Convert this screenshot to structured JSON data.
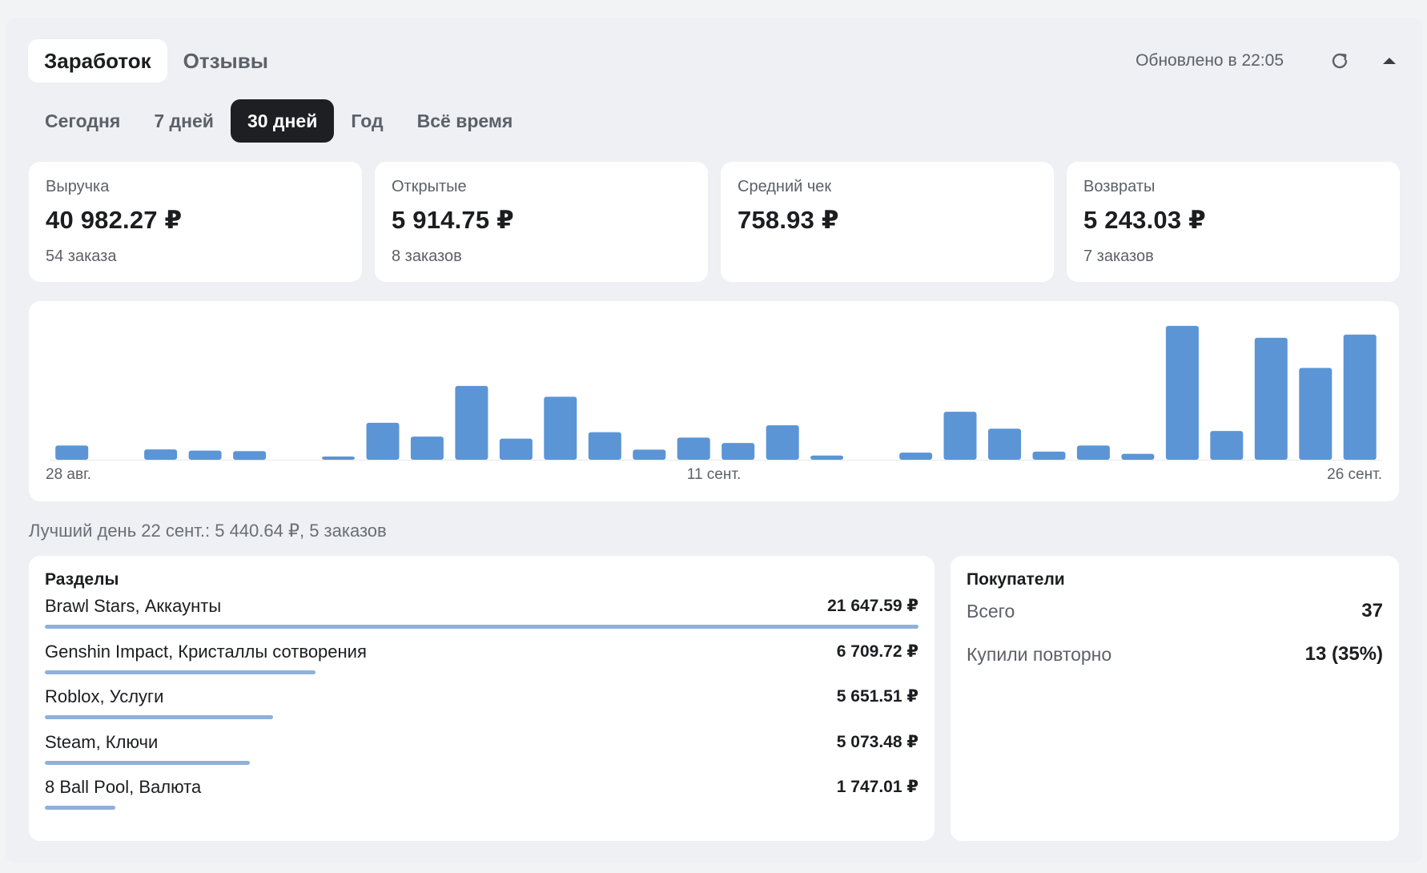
{
  "tabs": [
    {
      "label": "Заработок",
      "active": true
    },
    {
      "label": "Отзывы",
      "active": false
    }
  ],
  "header": {
    "updated": "Обновлено в 22:05",
    "refresh_icon": "refresh-icon",
    "collapse_icon": "triangle-up-icon"
  },
  "periods": [
    {
      "label": "Сегодня",
      "active": false
    },
    {
      "label": "7 дней",
      "active": false
    },
    {
      "label": "30 дней",
      "active": true
    },
    {
      "label": "Год",
      "active": false
    },
    {
      "label": "Всё время",
      "active": false
    }
  ],
  "stats": [
    {
      "label": "Выручка",
      "value": "40 982.27 ₽",
      "sub": "54 заказа"
    },
    {
      "label": "Открытые",
      "value": "5 914.75 ₽",
      "sub": "8 заказов"
    },
    {
      "label": "Средний чек",
      "value": "758.93 ₽",
      "sub": ""
    },
    {
      "label": "Возвраты",
      "value": "5 243.03 ₽",
      "sub": "7 заказов"
    }
  ],
  "chart_data": {
    "type": "bar",
    "x_tick_labels": [
      "28 авг.",
      "11 сент.",
      "26 сент."
    ],
    "values": [
      580,
      0,
      420,
      370,
      350,
      0,
      130,
      1500,
      940,
      3000,
      860,
      2560,
      1120,
      410,
      900,
      680,
      1400,
      170,
      0,
      290,
      1950,
      1260,
      330,
      580,
      240,
      5440.64,
      1170,
      4960,
      3730,
      5090
    ],
    "ylim": [
      0,
      5600
    ],
    "color": "#5b95d5",
    "grid": false
  },
  "best_day": "Лучший день 22 сент.: 5 440.64 ₽, 5 заказов",
  "sections": {
    "title": "Разделы",
    "items": [
      {
        "name": "Brawl Stars, Аккаунты",
        "value": "21 647.59 ₽",
        "amount": 21647.59
      },
      {
        "name": "Genshin Impact, Кристаллы сотворения",
        "value": "6 709.72 ₽",
        "amount": 6709.72
      },
      {
        "name": "Roblox, Услуги",
        "value": "5 651.51 ₽",
        "amount": 5651.51
      },
      {
        "name": "Steam, Ключи",
        "value": "5 073.48 ₽",
        "amount": 5073.48
      },
      {
        "name": "8 Ball Pool, Валюта",
        "value": "1 747.01 ₽",
        "amount": 1747.01
      }
    ]
  },
  "buyers": {
    "title": "Покупатели",
    "rows": [
      {
        "label": "Всего",
        "value": "37"
      },
      {
        "label": "Купили повторно",
        "value": "13 (35%)"
      }
    ]
  }
}
